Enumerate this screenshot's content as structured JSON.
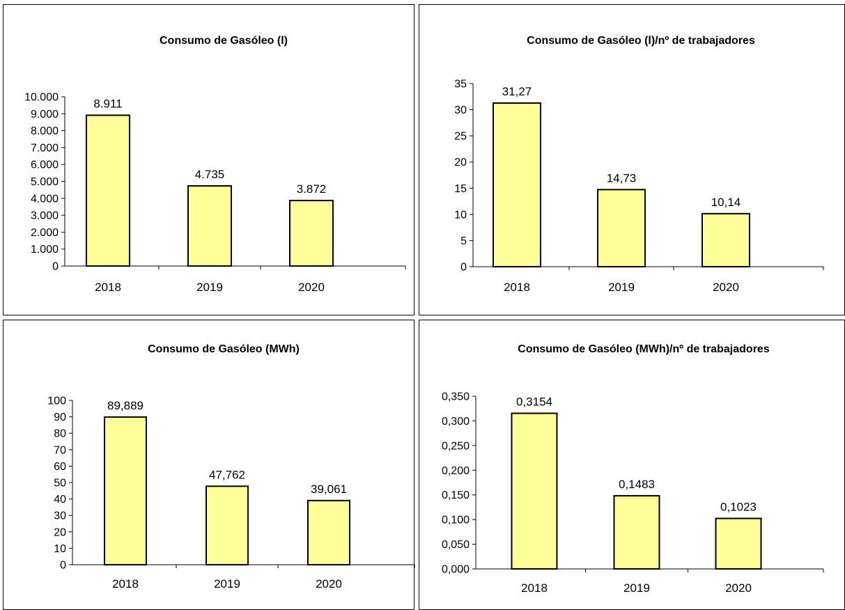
{
  "colors": {
    "bar_fill": "#FFFF99",
    "bar_stroke": "#000000",
    "background": "#FFFFFF"
  },
  "chart_data": [
    {
      "type": "bar",
      "title": "Consumo de Gasóleo (l)",
      "categories": [
        "2018",
        "2019",
        "2020"
      ],
      "values": [
        8911,
        4735,
        3872
      ],
      "value_labels": [
        "8.911",
        "4.735",
        "3.872"
      ],
      "ylim": [
        0,
        10000
      ],
      "yticks": [
        0,
        1000,
        2000,
        3000,
        4000,
        5000,
        6000,
        7000,
        8000,
        9000,
        10000
      ],
      "ytick_labels": [
        "0",
        "1.000",
        "2.000",
        "3.000",
        "4.000",
        "5.000",
        "6.000",
        "7.000",
        "8.000",
        "9.000",
        "10.000"
      ],
      "grid": false,
      "legend": "none"
    },
    {
      "type": "bar",
      "title": "Consumo de Gasóleo (l)/nº de trabajadores",
      "categories": [
        "2018",
        "2019",
        "2020"
      ],
      "values": [
        31.27,
        14.73,
        10.14
      ],
      "value_labels": [
        "31,27",
        "14,73",
        "10,14"
      ],
      "ylim": [
        0,
        35
      ],
      "yticks": [
        0,
        5,
        10,
        15,
        20,
        25,
        30,
        35
      ],
      "ytick_labels": [
        "0",
        "5",
        "10",
        "15",
        "20",
        "25",
        "30",
        "35"
      ],
      "grid": false,
      "legend": "none"
    },
    {
      "type": "bar",
      "title": "Consumo de Gasóleo (MWh)",
      "categories": [
        "2018",
        "2019",
        "2020"
      ],
      "values": [
        89.889,
        47.762,
        39.061
      ],
      "value_labels": [
        "89,889",
        "47,762",
        "39,061"
      ],
      "ylim": [
        0,
        100
      ],
      "yticks": [
        0,
        10,
        20,
        30,
        40,
        50,
        60,
        70,
        80,
        90,
        100
      ],
      "ytick_labels": [
        "0",
        "10",
        "20",
        "30",
        "40",
        "50",
        "60",
        "70",
        "80",
        "90",
        "100"
      ],
      "grid": false,
      "legend": "none"
    },
    {
      "type": "bar",
      "title": "Consumo de Gasóleo (MWh)/nº de trabajadores",
      "categories": [
        "2018",
        "2019",
        "2020"
      ],
      "values": [
        0.3154,
        0.1483,
        0.1023
      ],
      "value_labels": [
        "0,3154",
        "0,1483",
        "0,1023"
      ],
      "ylim": [
        0,
        0.35
      ],
      "yticks": [
        0,
        0.05,
        0.1,
        0.15,
        0.2,
        0.25,
        0.3,
        0.35
      ],
      "ytick_labels": [
        "0,000",
        "0,050",
        "0,100",
        "0,150",
        "0,200",
        "0,250",
        "0,300",
        "0,350"
      ],
      "grid": false,
      "legend": "none"
    }
  ]
}
